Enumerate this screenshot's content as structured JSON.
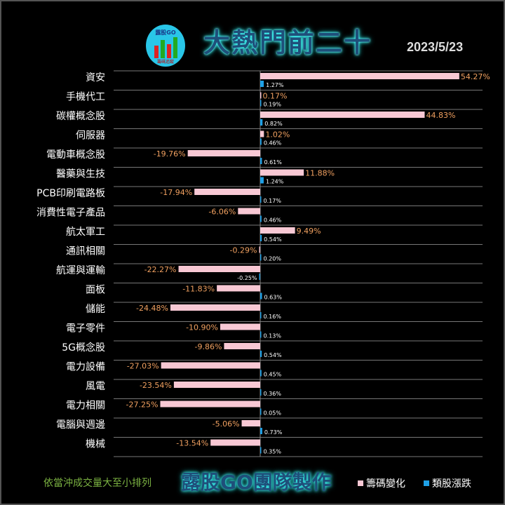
{
  "header": {
    "logo_text": "露股GO",
    "logo_sub": "籌碼追蹤",
    "title": "大熱門前二十",
    "date": "2023/5/23"
  },
  "footer": {
    "note": "依當沖成交量大至小排列",
    "brand": "露股GO團隊製作"
  },
  "colors": {
    "chip_change": "#f8c8d4",
    "sector_change": "#1ea0e6",
    "chip_label": "#f0a060",
    "grid": "#777"
  },
  "chart_data": {
    "type": "bar",
    "orientation": "horizontal",
    "categories": [
      "資安",
      "手機代工",
      "碳權概念股",
      "伺服器",
      "電動車概念股",
      "醫藥與生技",
      "PCB印刷電路板",
      "消費性電子產品",
      "航太軍工",
      "通訊相關",
      "航運與運輸",
      "面板",
      "儲能",
      "電子零件",
      "5G概念股",
      "電力設備",
      "風電",
      "電力相關",
      "電腦與週邊",
      "機械"
    ],
    "series": [
      {
        "name": "籌碼變化",
        "values": [
          54.27,
          0.17,
          44.83,
          1.02,
          -19.76,
          11.88,
          -17.94,
          -6.06,
          9.49,
          -0.29,
          -22.27,
          -11.83,
          -24.48,
          -10.9,
          -9.86,
          -27.03,
          -23.54,
          -27.25,
          -5.06,
          -13.54
        ]
      },
      {
        "name": "類股漲跌",
        "values": [
          1.27,
          0.19,
          0.82,
          0.46,
          0.61,
          1.24,
          0.17,
          0.46,
          0.54,
          0.2,
          -0.25,
          0.63,
          0.16,
          0.13,
          0.54,
          0.45,
          0.36,
          0.05,
          0.73,
          0.35
        ]
      }
    ],
    "unit": "%",
    "legend": "bottom-right",
    "grid": true
  }
}
